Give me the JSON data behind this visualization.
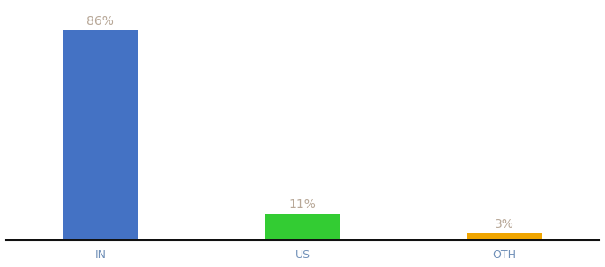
{
  "categories": [
    "IN",
    "US",
    "OTH"
  ],
  "values": [
    86,
    11,
    3
  ],
  "labels": [
    "86%",
    "11%",
    "3%"
  ],
  "bar_colors": [
    "#4472c4",
    "#33cc33",
    "#f0a500"
  ],
  "background_color": "#ffffff",
  "label_color": "#b8a898",
  "xlabel_color": "#7090b8",
  "ylim": [
    0,
    96
  ],
  "bar_width": 0.55,
  "x_positions": [
    0.5,
    2.0,
    3.5
  ],
  "xlim": [
    -0.2,
    4.2
  ],
  "figsize": [
    6.8,
    3.0
  ],
  "dpi": 100,
  "label_fontsize": 10,
  "xlabel_fontsize": 9
}
